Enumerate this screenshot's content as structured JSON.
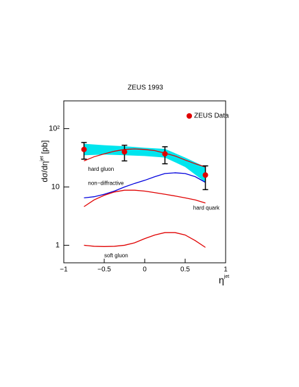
{
  "chart_data": {
    "type": "line",
    "title": "ZEUS 1993",
    "xlabel": "η",
    "xlabel_sup": "jet",
    "ylabel": "dσ/dη",
    "ylabel_sup": "jet",
    "ylabel_unit": "[pb]",
    "xlim": [
      -1,
      1
    ],
    "xticks": [
      {
        "value": -1,
        "label": "−1"
      },
      {
        "value": -0.5,
        "label": "−0.5"
      },
      0,
      0.5,
      1
    ],
    "ylim": [
      0.5,
      300
    ],
    "log_y": true,
    "yticks": [
      1,
      10,
      {
        "value": 100,
        "label": "10²"
      }
    ],
    "legend": "upper right",
    "points": {
      "name": "ZEUS Data",
      "color": "#e00000",
      "x": [
        -0.75,
        -0.25,
        0.25,
        0.75
      ],
      "values": [
        44,
        40,
        37,
        16
      ],
      "errors": [
        14,
        12,
        12,
        7
      ]
    },
    "band": {
      "color": "#00e5ee",
      "x": [
        -0.75,
        -0.5,
        -0.25,
        0,
        0.25,
        0.5,
        0.75
      ],
      "lower": [
        35,
        36,
        35,
        34,
        32,
        22,
        12
      ],
      "upper": [
        55,
        52,
        50,
        47,
        45,
        32,
        22
      ]
    },
    "x": [
      -0.75,
      -0.625,
      -0.5,
      -0.375,
      -0.25,
      -0.125,
      0,
      0.125,
      0.25,
      0.375,
      0.5,
      0.625,
      0.75
    ],
    "series": [
      {
        "color": "#e00000",
        "values": [
          28,
          33,
          37,
          41,
          44,
          45,
          44,
          42,
          38,
          34,
          29,
          25,
          22
        ]
      },
      {
        "color": "#0000dd",
        "values": [
          6.5,
          6.8,
          7.5,
          8.5,
          10,
          11.5,
          13,
          15,
          17,
          17.5,
          17,
          15,
          12
        ]
      },
      {
        "color": "#e00000",
        "values": [
          4.6,
          6,
          7.2,
          8.2,
          8.8,
          8.8,
          8.5,
          8,
          7.5,
          7,
          6.5,
          6,
          5.3
        ]
      },
      {
        "color": "#e00000",
        "values": [
          1.0,
          0.96,
          0.95,
          0.96,
          1.0,
          1.1,
          1.3,
          1.5,
          1.65,
          1.65,
          1.5,
          1.2,
          0.92
        ]
      }
    ],
    "annotations": [
      {
        "text": "hard gluon",
        "x": -0.7,
        "y": 20
      },
      {
        "text": "non−diffractive",
        "x": -0.7,
        "y": 11.5
      },
      {
        "text": "hard quark",
        "x": 0.6,
        "y": 4.3
      },
      {
        "text": "soft gluon",
        "x": -0.5,
        "y": 0.66
      }
    ]
  }
}
